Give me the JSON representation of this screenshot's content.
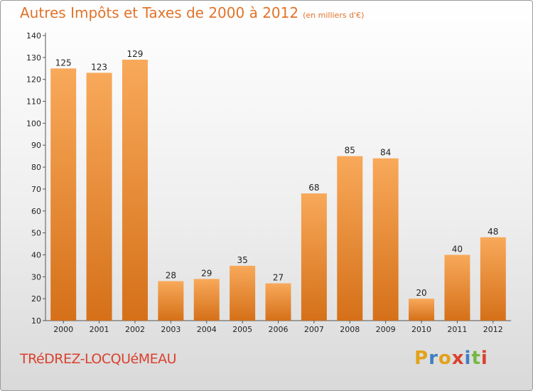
{
  "header": {
    "title": "Autres Impôts et Taxes de 2000 à 2012",
    "unit": "(en milliers d'€)"
  },
  "footer": {
    "place": "TRéDREZ-LOCQUéMEAU",
    "logo_letters": [
      "P",
      "r",
      "o",
      "x",
      "i",
      "t",
      "i"
    ],
    "logo_colors": [
      "#e3a21a",
      "#3f7fc1",
      "#e3a21a",
      "#d9412f",
      "#3f7fc1",
      "#74b843",
      "#d9412f"
    ]
  },
  "colors": {
    "bar_top": "#f8a95a",
    "bar_bottom": "#d57019",
    "axis": "#555555",
    "text": "#222222"
  },
  "chart_data": {
    "type": "bar",
    "title": "Autres Impôts et Taxes de 2000 à 2012",
    "subtitle": "(en milliers d'€)",
    "categories": [
      "2000",
      "2001",
      "2002",
      "2003",
      "2004",
      "2005",
      "2006",
      "2007",
      "2008",
      "2009",
      "2010",
      "2011",
      "2012"
    ],
    "values": [
      125,
      123,
      129,
      28,
      29,
      35,
      27,
      68,
      85,
      84,
      20,
      40,
      48
    ],
    "ylim": [
      10,
      140
    ],
    "yticks": [
      10,
      20,
      30,
      40,
      50,
      60,
      70,
      80,
      90,
      100,
      110,
      120,
      130,
      140
    ],
    "grid": false,
    "legend": "none"
  }
}
